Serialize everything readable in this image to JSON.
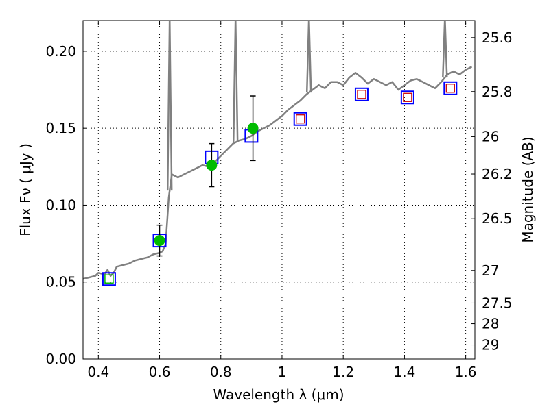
{
  "chart_data": {
    "type": "line",
    "xlabel": "Wavelength  λ (μm)",
    "ylabel": "Flux  Fν  ( μJy )",
    "y2label": "Magnitude (AB)",
    "xlim": [
      0.35,
      1.63
    ],
    "ylim": [
      0.0,
      0.22
    ],
    "grid": true,
    "x_ticks": [
      {
        "value": 0.4,
        "label": "0.4"
      },
      {
        "value": 0.6,
        "label": "0.6"
      },
      {
        "value": 0.8,
        "label": "0.8"
      },
      {
        "value": 1.0,
        "label": "1"
      },
      {
        "value": 1.2,
        "label": "1.2"
      },
      {
        "value": 1.4,
        "label": "1.4"
      },
      {
        "value": 1.6,
        "label": "1.6"
      }
    ],
    "y_ticks": [
      {
        "value": 0.0,
        "label": "0.00"
      },
      {
        "value": 0.05,
        "label": "0.05"
      },
      {
        "value": 0.1,
        "label": "0.10"
      },
      {
        "value": 0.15,
        "label": "0.15"
      },
      {
        "value": 0.2,
        "label": "0.20"
      }
    ],
    "y2_ticks": [
      {
        "value": 25.6,
        "label": "25.6"
      },
      {
        "value": 25.8,
        "label": "25.8"
      },
      {
        "value": 26.0,
        "label": "26"
      },
      {
        "value": 26.2,
        "label": "26.2"
      },
      {
        "value": 26.5,
        "label": "26.5"
      },
      {
        "value": 27.0,
        "label": "27"
      },
      {
        "value": 27.5,
        "label": "27.5"
      },
      {
        "value": 28.0,
        "label": "28"
      },
      {
        "value": 29.0,
        "label": "29"
      }
    ],
    "spectrum": {
      "color": "#808080",
      "x": [
        0.35,
        0.37,
        0.39,
        0.4,
        0.42,
        0.43,
        0.44,
        0.45,
        0.46,
        0.48,
        0.5,
        0.52,
        0.54,
        0.56,
        0.58,
        0.6,
        0.61,
        0.62,
        0.63,
        0.64,
        0.66,
        0.68,
        0.7,
        0.72,
        0.74,
        0.76,
        0.78,
        0.8,
        0.82,
        0.84,
        0.86,
        0.88,
        0.9,
        0.92,
        0.94,
        0.96,
        0.98,
        1.0,
        1.02,
        1.04,
        1.06,
        1.08,
        1.1,
        1.12,
        1.14,
        1.16,
        1.18,
        1.2,
        1.22,
        1.24,
        1.26,
        1.28,
        1.3,
        1.32,
        1.34,
        1.36,
        1.38,
        1.4,
        1.42,
        1.44,
        1.46,
        1.48,
        1.5,
        1.52,
        1.54,
        1.56,
        1.58,
        1.6,
        1.62
      ],
      "y": [
        0.052,
        0.053,
        0.054,
        0.056,
        0.055,
        0.058,
        0.054,
        0.056,
        0.06,
        0.061,
        0.062,
        0.064,
        0.065,
        0.066,
        0.068,
        0.069,
        0.07,
        0.075,
        0.105,
        0.12,
        0.118,
        0.12,
        0.122,
        0.124,
        0.126,
        0.125,
        0.128,
        0.132,
        0.136,
        0.14,
        0.142,
        0.143,
        0.145,
        0.148,
        0.15,
        0.152,
        0.155,
        0.158,
        0.162,
        0.165,
        0.168,
        0.172,
        0.175,
        0.178,
        0.176,
        0.18,
        0.18,
        0.178,
        0.183,
        0.186,
        0.183,
        0.179,
        0.182,
        0.18,
        0.178,
        0.18,
        0.175,
        0.178,
        0.181,
        0.182,
        0.18,
        0.178,
        0.176,
        0.18,
        0.185,
        0.187,
        0.185,
        0.188,
        0.19
      ]
    },
    "spikes": [
      {
        "x": 0.633,
        "y": 0.22
      },
      {
        "x": 0.848,
        "y": 0.22
      },
      {
        "x": 1.088,
        "y": 0.22
      },
      {
        "x": 1.532,
        "y": 0.22
      }
    ],
    "model_points": {
      "outline_color": "#0000ff",
      "x": [
        0.435,
        0.6,
        0.77,
        0.9,
        1.06,
        1.26,
        1.41,
        1.55
      ],
      "y": [
        0.052,
        0.077,
        0.131,
        0.145,
        0.156,
        0.172,
        0.17,
        0.176
      ]
    },
    "observed_points": {
      "color": "#00bb00",
      "x": [
        0.435,
        0.6,
        0.77,
        0.905
      ],
      "y": [
        0.052,
        0.077,
        0.126,
        0.15
      ],
      "yerr": [
        0.0,
        0.01,
        0.014,
        0.021
      ]
    },
    "nir_points": {
      "color": "#cc0000",
      "x": [
        1.06,
        1.26,
        1.41,
        1.55
      ],
      "y": [
        0.156,
        0.172,
        0.17,
        0.176
      ]
    }
  }
}
